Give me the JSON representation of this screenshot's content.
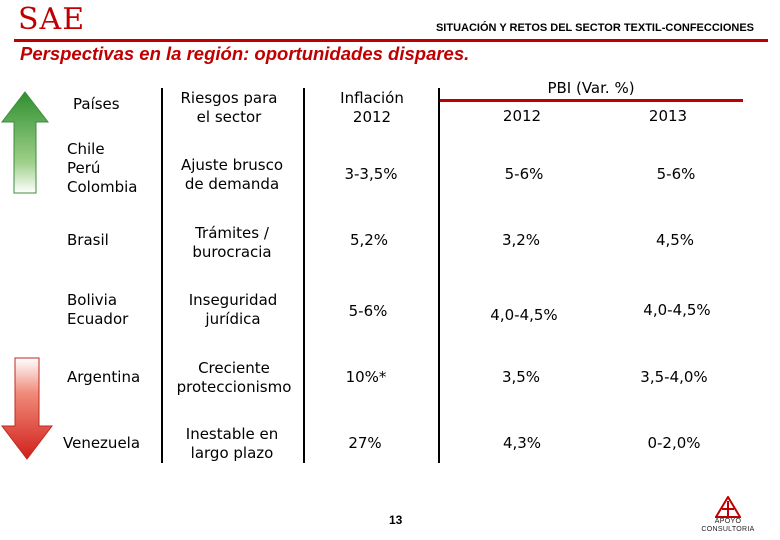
{
  "header": {
    "logo": "SAE",
    "title": "SITUACIÓN Y RETOS DEL SECTOR TEXTIL-CONFECCIONES",
    "subtitle": "Perspectivas en la región: oportunidades dispares."
  },
  "table": {
    "headers": {
      "countries": "Países",
      "risks_l1": "Riesgos para",
      "risks_l2": "el sector",
      "inflation_l1": "Inflación",
      "inflation_l2": "2012",
      "gdp": "PBI (Var. %)",
      "gdp_2012": "2012",
      "gdp_2013": "2013"
    },
    "rows": [
      {
        "countries": [
          "Chile",
          "Perú",
          "Colombia"
        ],
        "risk": [
          "Ajuste brusco",
          "de demanda"
        ],
        "inflation": "3-3,5%",
        "gdp2012": "5-6%",
        "gdp2013": "5-6%"
      },
      {
        "countries": [
          "Brasil"
        ],
        "risk": [
          "Trámites /",
          "burocracia"
        ],
        "inflation": "5,2%",
        "gdp2012": "3,2%",
        "gdp2013": "4,5%"
      },
      {
        "countries": [
          "Bolivia",
          "Ecuador"
        ],
        "risk": [
          "Inseguridad",
          "jurídica"
        ],
        "inflation": "5-6%",
        "gdp2012": "4,0-4,5%",
        "gdp2013": "4,0-4,5%"
      },
      {
        "countries": [
          "Argentina"
        ],
        "risk": [
          "Creciente",
          "proteccionismo"
        ],
        "inflation": "10%*",
        "gdp2012": "3,5%",
        "gdp2013": "3,5-4,0%"
      },
      {
        "countries": [
          "Venezuela"
        ],
        "risk": [
          "Inestable en",
          "largo plazo"
        ],
        "inflation": "27%",
        "gdp2012": "4,3%",
        "gdp2013": "0-2,0%"
      }
    ]
  },
  "footer": {
    "page_number": "13",
    "brand_l1": "APOYO",
    "brand_l2": "CONSULTORIA"
  },
  "colors": {
    "accent": "#c00000",
    "arrow_up": "#2e8b3a",
    "arrow_down": "#d42a20"
  },
  "icons": {
    "up": "up-arrow-icon",
    "down": "down-arrow-icon",
    "brand": "apoyo-logo-icon"
  }
}
